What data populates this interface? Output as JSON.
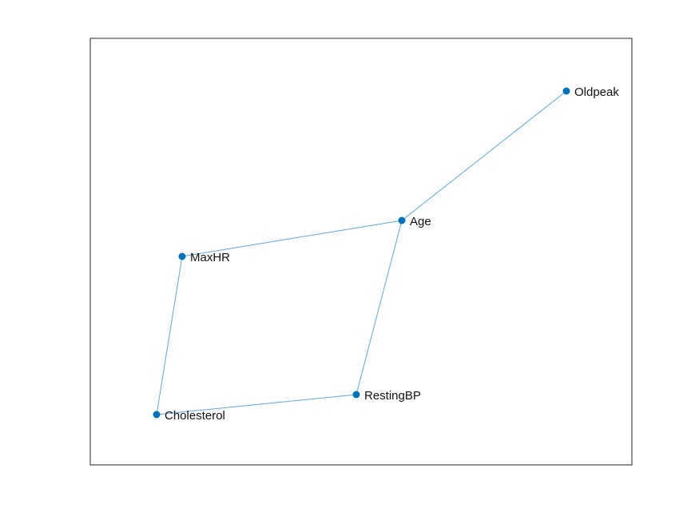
{
  "graph": {
    "nodes": [
      {
        "id": "Oldpeak",
        "label": "Oldpeak"
      },
      {
        "id": "Age",
        "label": "Age"
      },
      {
        "id": "MaxHR",
        "label": "MaxHR"
      },
      {
        "id": "RestingBP",
        "label": "RestingBP"
      },
      {
        "id": "Cholesterol",
        "label": "Cholesterol"
      }
    ],
    "edges": [
      {
        "from": "Oldpeak",
        "to": "Age"
      },
      {
        "from": "Age",
        "to": "MaxHR"
      },
      {
        "from": "Age",
        "to": "RestingBP"
      },
      {
        "from": "MaxHR",
        "to": "Cholesterol"
      },
      {
        "from": "Cholesterol",
        "to": "RestingBP"
      }
    ],
    "colors": {
      "node": "#0072bd",
      "edge": "#5ba9df",
      "axes_box": "#262626",
      "label": "#111111"
    }
  }
}
